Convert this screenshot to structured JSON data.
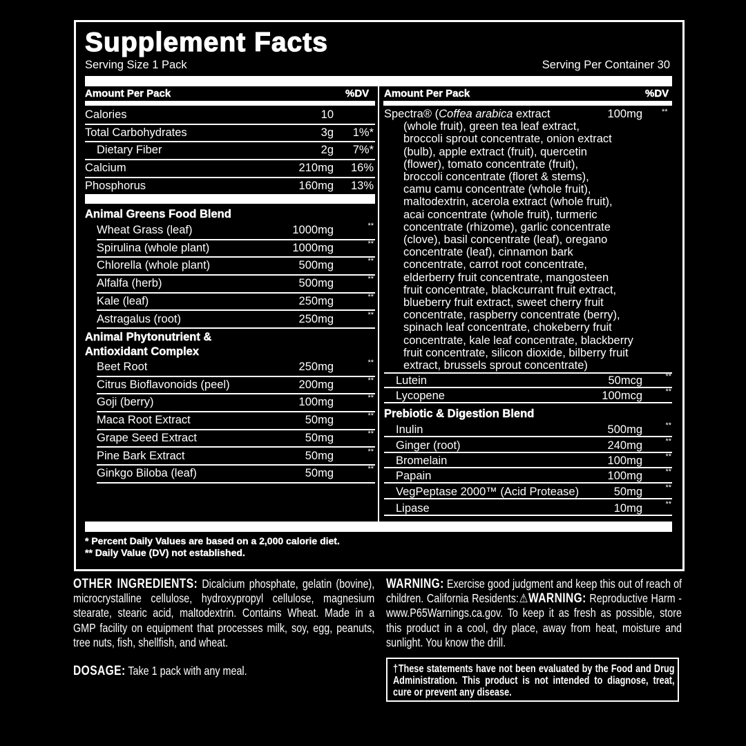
{
  "title": "Supplement Facts",
  "serving_size": "Serving Size 1 Pack",
  "servings_per_container": "Serving Per Container 30",
  "left": {
    "header": {
      "amount": "Amount Per Pack",
      "dv": "%DV"
    },
    "nutrients": [
      {
        "name": "Calories",
        "amount": "10",
        "dv": ""
      },
      {
        "name": "Total Carbohydrates",
        "amount": "3g",
        "dv": "1%*"
      },
      {
        "name": "Dietary Fiber",
        "amount": "2g",
        "dv": "7%*",
        "indent": true
      },
      {
        "name": "Calcium",
        "amount": "210mg",
        "dv": "16%"
      },
      {
        "name": "Phosphorus",
        "amount": "160mg",
        "dv": "13%"
      }
    ],
    "greens_blend": {
      "title": "Animal Greens Food Blend",
      "items": [
        {
          "name": "Wheat Grass (leaf)",
          "amount": "1000mg",
          "dv": "**"
        },
        {
          "name": "Spirulina (whole plant)",
          "amount": "1000mg",
          "dv": "**"
        },
        {
          "name": "Chlorella (whole plant)",
          "amount": "500mg",
          "dv": "**"
        },
        {
          "name": "Alfalfa (herb)",
          "amount": "500mg",
          "dv": "**"
        },
        {
          "name": "Kale (leaf)",
          "amount": "250mg",
          "dv": "**"
        },
        {
          "name": "Astragalus (root)",
          "amount": "250mg",
          "dv": "**"
        }
      ]
    },
    "phyto_blend": {
      "title_line1": "Animal Phytonutrient &",
      "title_line2": "Antioxidant Complex",
      "items": [
        {
          "name": "Beet Root",
          "amount": "250mg",
          "dv": "**"
        },
        {
          "name": "Citrus Bioflavonoids (peel)",
          "amount": "200mg",
          "dv": "**"
        },
        {
          "name": "Goji (berry)",
          "amount": "100mg",
          "dv": "**"
        },
        {
          "name": "Maca Root Extract",
          "amount": "50mg",
          "dv": "**"
        },
        {
          "name": "Grape Seed Extract",
          "amount": "50mg",
          "dv": "**"
        },
        {
          "name": "Pine Bark Extract",
          "amount": "50mg",
          "dv": "**"
        },
        {
          "name": "Ginkgo Biloba (leaf)",
          "amount": "50mg",
          "dv": "**"
        }
      ]
    }
  },
  "right": {
    "header": {
      "amount": "Amount Per Pack",
      "dv": "%DV"
    },
    "spectra": {
      "name": "Spectra®",
      "open": " (",
      "italic": "Coffea arabica",
      "first_rest": " extract",
      "amount": "100mg",
      "dv": "**",
      "lines": [
        "(whole fruit), green tea leaf extract,",
        "broccoli sprout concentrate, onion extract",
        "(bulb), apple extract (fruit), quercetin",
        "(flower), tomato concentrate (fruit),",
        "broccoli concentrate (floret & stems),",
        "camu camu concentrate (whole fruit),",
        "maltodextrin, acerola extract (whole fruit),",
        "acai concentrate (whole fruit), turmeric",
        "concentrate (rhizome), garlic concentrate",
        "(clove), basil concentrate (leaf), oregano",
        "concentrate (leaf), cinnamon bark",
        "concentrate, carrot root concentrate,",
        "elderberry fruit concentrate, mangosteen",
        "fruit concentrate, blackcurrant fruit extract,",
        "blueberry fruit extract, sweet cherry fruit",
        "concentrate, raspberry concentrate (berry),",
        "spinach leaf concentrate, chokeberry fruit",
        "concentrate, kale leaf concentrate, blackberry",
        "fruit concentrate, silicon dioxide, bilberry fruit",
        "extract, brussels sprout concentrate)"
      ]
    },
    "extras": [
      {
        "name": "Lutein",
        "amount": "50mcg",
        "dv": "**"
      },
      {
        "name": "Lycopene",
        "amount": "100mcg",
        "dv": "**"
      }
    ],
    "prebiotic_blend": {
      "title": "Prebiotic & Digestion Blend",
      "items": [
        {
          "name": "Inulin",
          "amount": "500mg",
          "dv": "**"
        },
        {
          "name": "Ginger (root)",
          "amount": "240mg",
          "dv": "**"
        },
        {
          "name": "Bromelain",
          "amount": "100mg",
          "dv": "**"
        },
        {
          "name": "Papain",
          "amount": "100mg",
          "dv": "**"
        },
        {
          "name": "VegPeptase 2000™ (Acid Protease)",
          "amount": "50mg",
          "dv": "**"
        },
        {
          "name": "Lipase",
          "amount": "10mg",
          "dv": "**"
        }
      ]
    }
  },
  "footnotes": [
    "* Percent Daily Values are based on a 2,000 calorie diet.",
    "** Daily Value (DV) not established."
  ],
  "other_ingredients": {
    "label": "OTHER INGREDIENTS:",
    "text": " Dicalcium phosphate, gelatin (bovine), microcrystalline cellulose, hydroxypropyl cellulose, magnesium stearate, stearic acid, maltodextrin. Contains Wheat. Made in a GMP facility on equipment that processes milk, soy, egg, peanuts, tree nuts, fish, shellfish, and wheat."
  },
  "dosage": {
    "label": "DOSAGE:",
    "text": " Take 1 pack with any meal."
  },
  "warning": {
    "label": "WARNING:",
    "text1": " Exercise good judgment and keep this out of reach of children. California Residents:",
    "icon": "warning-triangle-icon",
    "label2": "WARNING:",
    "text2": " Reproductive Harm - www.P65Warnings.ca.gov. To keep it as fresh as possible, store this product in a cool, dry place, away from heat, moisture and sunlight. You know the drill."
  },
  "disclaimer": "†These statements have not been evaluated by the Food and Drug Administration. This product is not intended to diagnose, treat, cure or prevent any disease."
}
